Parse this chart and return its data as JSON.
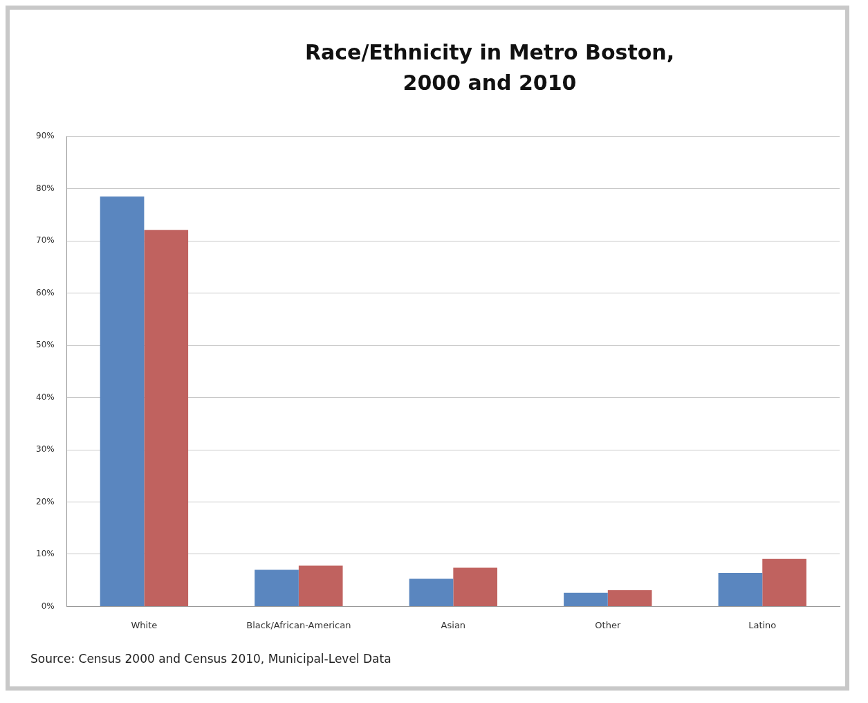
{
  "chart_data": {
    "type": "bar",
    "title": "Race/Ethnicity in Metro Boston, 2000 and 2010",
    "categories": [
      "White",
      "Black/African-American",
      "Asian",
      "Other",
      "Latino"
    ],
    "series": [
      {
        "color": "#5a86bf",
        "values": [
          78.5,
          7.0,
          5.3,
          2.6,
          6.4
        ]
      },
      {
        "color": "#c0625f",
        "values": [
          72.1,
          7.8,
          7.4,
          3.1,
          9.1
        ]
      }
    ],
    "ylim": [
      0,
      90
    ],
    "yticks": [
      {
        "value": 0,
        "label": "0%"
      },
      {
        "value": 10,
        "label": "10%"
      },
      {
        "value": 20,
        "label": "20%"
      },
      {
        "value": 30,
        "label": "30%"
      },
      {
        "value": 40,
        "label": "40%"
      },
      {
        "value": 50,
        "label": "50%"
      },
      {
        "value": 60,
        "label": "60%"
      },
      {
        "value": 70,
        "label": "70%"
      },
      {
        "value": 80,
        "label": "80%"
      },
      {
        "value": 90,
        "label": "90%"
      }
    ],
    "grid": "y",
    "legend": false,
    "annotations": [
      "Source: Census 2000 and Census 2010, Municipal-Level Data"
    ]
  }
}
